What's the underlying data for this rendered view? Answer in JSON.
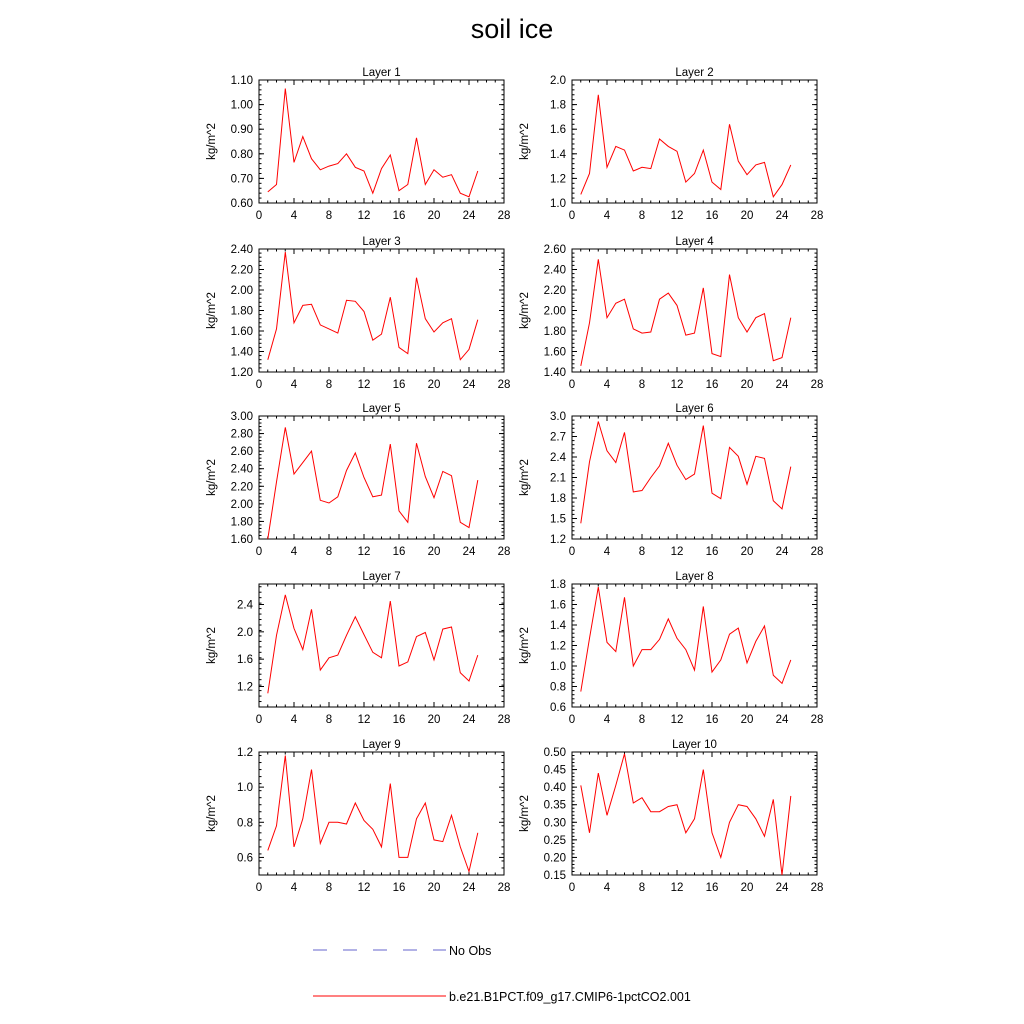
{
  "title": "soil ice",
  "chart_data": [
    {
      "type": "line",
      "title": "Layer 1",
      "ylabel": "kg/m^2",
      "xlim": [
        0,
        28
      ],
      "xticks": [
        0,
        4,
        8,
        12,
        16,
        20,
        24,
        28
      ],
      "ylim": [
        0.6,
        1.1
      ],
      "yticks": [
        0.6,
        0.7,
        0.8,
        0.9,
        1.0,
        1.1
      ],
      "ytick_labels": [
        "0.60",
        "0.70",
        "0.80",
        "0.90",
        "1.00",
        "1.10"
      ],
      "series": [
        {
          "name": "b.e21.B1PCT.f09_g17.CMIP6-1pctCO2.001",
          "color": "#ff0000",
          "x": [
            1,
            2,
            3,
            4,
            5,
            6,
            7,
            8,
            9,
            10,
            11,
            12,
            13,
            14,
            15,
            16,
            17,
            18,
            19,
            20,
            21,
            22,
            23,
            24,
            25
          ],
          "y": [
            0.645,
            0.675,
            1.065,
            0.765,
            0.87,
            0.78,
            0.735,
            0.75,
            0.76,
            0.8,
            0.745,
            0.73,
            0.64,
            0.74,
            0.795,
            0.65,
            0.675,
            0.865,
            0.675,
            0.735,
            0.705,
            0.715,
            0.64,
            0.625,
            0.73
          ]
        }
      ]
    },
    {
      "type": "line",
      "title": "Layer 2",
      "ylabel": "kg/m^2",
      "xlim": [
        0,
        28
      ],
      "xticks": [
        0,
        4,
        8,
        12,
        16,
        20,
        24,
        28
      ],
      "ylim": [
        1.0,
        2.0
      ],
      "yticks": [
        1.0,
        1.2,
        1.4,
        1.6,
        1.8,
        2.0
      ],
      "ytick_labels": [
        "1.0",
        "1.2",
        "1.4",
        "1.6",
        "1.8",
        "2.0"
      ],
      "series": [
        {
          "name": "b.e21.B1PCT.f09_g17.CMIP6-1pctCO2.001",
          "color": "#ff0000",
          "x": [
            1,
            2,
            3,
            4,
            5,
            6,
            7,
            8,
            9,
            10,
            11,
            12,
            13,
            14,
            15,
            16,
            17,
            18,
            19,
            20,
            21,
            22,
            23,
            24,
            25
          ],
          "y": [
            1.07,
            1.24,
            1.88,
            1.29,
            1.46,
            1.43,
            1.26,
            1.29,
            1.28,
            1.52,
            1.46,
            1.42,
            1.17,
            1.24,
            1.43,
            1.17,
            1.11,
            1.64,
            1.34,
            1.23,
            1.31,
            1.33,
            1.05,
            1.15,
            1.31
          ]
        }
      ]
    },
    {
      "type": "line",
      "title": "Layer 3",
      "ylabel": "kg/m^2",
      "xlim": [
        0,
        28
      ],
      "xticks": [
        0,
        4,
        8,
        12,
        16,
        20,
        24,
        28
      ],
      "ylim": [
        1.2,
        2.4
      ],
      "yticks": [
        1.2,
        1.4,
        1.6,
        1.8,
        2.0,
        2.2,
        2.4
      ],
      "ytick_labels": [
        "1.20",
        "1.40",
        "1.60",
        "1.80",
        "2.00",
        "2.20",
        "2.40"
      ],
      "series": [
        {
          "name": "b.e21.B1PCT.f09_g17.CMIP6-1pctCO2.001",
          "color": "#ff0000",
          "x": [
            1,
            2,
            3,
            4,
            5,
            6,
            7,
            8,
            9,
            10,
            11,
            12,
            13,
            14,
            15,
            16,
            17,
            18,
            19,
            20,
            21,
            22,
            23,
            24,
            25
          ],
          "y": [
            1.32,
            1.62,
            2.37,
            1.68,
            1.85,
            1.86,
            1.66,
            1.62,
            1.58,
            1.9,
            1.89,
            1.79,
            1.51,
            1.57,
            1.93,
            1.44,
            1.38,
            2.12,
            1.72,
            1.59,
            1.68,
            1.72,
            1.32,
            1.42,
            1.71
          ]
        }
      ]
    },
    {
      "type": "line",
      "title": "Layer 4",
      "ylabel": "kg/m^2",
      "xlim": [
        0,
        28
      ],
      "xticks": [
        0,
        4,
        8,
        12,
        16,
        20,
        24,
        28
      ],
      "ylim": [
        1.4,
        2.6
      ],
      "yticks": [
        1.4,
        1.6,
        1.8,
        2.0,
        2.2,
        2.4,
        2.6
      ],
      "ytick_labels": [
        "1.40",
        "1.60",
        "1.80",
        "2.00",
        "2.20",
        "2.40",
        "2.60"
      ],
      "series": [
        {
          "name": "b.e21.B1PCT.f09_g17.CMIP6-1pctCO2.001",
          "color": "#ff0000",
          "x": [
            1,
            2,
            3,
            4,
            5,
            6,
            7,
            8,
            9,
            10,
            11,
            12,
            13,
            14,
            15,
            16,
            17,
            18,
            19,
            20,
            21,
            22,
            23,
            24,
            25
          ],
          "y": [
            1.46,
            1.88,
            2.5,
            1.93,
            2.07,
            2.11,
            1.82,
            1.78,
            1.79,
            2.11,
            2.17,
            2.05,
            1.76,
            1.78,
            2.22,
            1.58,
            1.55,
            2.35,
            1.93,
            1.79,
            1.93,
            1.97,
            1.51,
            1.54,
            1.93
          ]
        }
      ]
    },
    {
      "type": "line",
      "title": "Layer 5",
      "ylabel": "kg/m^2",
      "xlim": [
        0,
        28
      ],
      "xticks": [
        0,
        4,
        8,
        12,
        16,
        20,
        24,
        28
      ],
      "ylim": [
        1.6,
        3.0
      ],
      "yticks": [
        1.6,
        1.8,
        2.0,
        2.2,
        2.4,
        2.6,
        2.8,
        3.0
      ],
      "ytick_labels": [
        "1.60",
        "1.80",
        "2.00",
        "2.20",
        "2.40",
        "2.60",
        "2.80",
        "3.00"
      ],
      "series": [
        {
          "name": "b.e21.B1PCT.f09_g17.CMIP6-1pctCO2.001",
          "color": "#ff0000",
          "x": [
            1,
            2,
            3,
            4,
            5,
            6,
            7,
            8,
            9,
            10,
            11,
            12,
            13,
            14,
            15,
            16,
            17,
            18,
            19,
            20,
            21,
            22,
            23,
            24,
            25
          ],
          "y": [
            1.6,
            2.25,
            2.87,
            2.34,
            2.47,
            2.6,
            2.04,
            2.01,
            2.08,
            2.38,
            2.58,
            2.3,
            2.08,
            2.1,
            2.68,
            1.92,
            1.79,
            2.69,
            2.31,
            2.07,
            2.37,
            2.32,
            1.79,
            1.73,
            2.27
          ]
        }
      ]
    },
    {
      "type": "line",
      "title": "Layer 6",
      "ylabel": "kg/m^2",
      "xlim": [
        0,
        28
      ],
      "xticks": [
        0,
        4,
        8,
        12,
        16,
        20,
        24,
        28
      ],
      "ylim": [
        1.2,
        3.0
      ],
      "yticks": [
        1.2,
        1.5,
        1.8,
        2.1,
        2.4,
        2.7,
        3.0
      ],
      "ytick_labels": [
        "1.2",
        "1.5",
        "1.8",
        "2.1",
        "2.4",
        "2.7",
        "3.0"
      ],
      "series": [
        {
          "name": "b.e21.B1PCT.f09_g17.CMIP6-1pctCO2.001",
          "color": "#ff0000",
          "x": [
            1,
            2,
            3,
            4,
            5,
            6,
            7,
            8,
            9,
            10,
            11,
            12,
            13,
            14,
            15,
            16,
            17,
            18,
            19,
            20,
            21,
            22,
            23,
            24,
            25
          ],
          "y": [
            1.43,
            2.33,
            2.92,
            2.49,
            2.32,
            2.76,
            1.89,
            1.91,
            2.1,
            2.27,
            2.6,
            2.28,
            2.07,
            2.15,
            2.86,
            1.87,
            1.79,
            2.54,
            2.41,
            2.0,
            2.41,
            2.38,
            1.76,
            1.64,
            2.26
          ]
        }
      ]
    },
    {
      "type": "line",
      "title": "Layer 7",
      "ylabel": "kg/m^2",
      "xlim": [
        0,
        28
      ],
      "xticks": [
        0,
        4,
        8,
        12,
        16,
        20,
        24,
        28
      ],
      "ylim": [
        0.9,
        2.7
      ],
      "yticks": [
        1.2,
        1.6,
        2.0,
        2.4
      ],
      "ytick_labels": [
        "1.2",
        "1.6",
        "2.0",
        "2.4"
      ],
      "series": [
        {
          "name": "b.e21.B1PCT.f09_g17.CMIP6-1pctCO2.001",
          "color": "#ff0000",
          "x": [
            1,
            2,
            3,
            4,
            5,
            6,
            7,
            8,
            9,
            10,
            11,
            12,
            13,
            14,
            15,
            16,
            17,
            18,
            19,
            20,
            21,
            22,
            23,
            24,
            25
          ],
          "y": [
            1.1,
            1.95,
            2.54,
            2.05,
            1.74,
            2.33,
            1.44,
            1.62,
            1.66,
            1.95,
            2.22,
            1.96,
            1.7,
            1.62,
            2.45,
            1.5,
            1.56,
            1.93,
            1.99,
            1.59,
            2.04,
            2.07,
            1.4,
            1.28,
            1.66
          ]
        }
      ]
    },
    {
      "type": "line",
      "title": "Layer 8",
      "ylabel": "kg/m^2",
      "xlim": [
        0,
        28
      ],
      "xticks": [
        0,
        4,
        8,
        12,
        16,
        20,
        24,
        28
      ],
      "ylim": [
        0.6,
        1.8
      ],
      "yticks": [
        0.6,
        0.8,
        1.0,
        1.2,
        1.4,
        1.6,
        1.8
      ],
      "ytick_labels": [
        "0.6",
        "0.8",
        "1.0",
        "1.2",
        "1.4",
        "1.6",
        "1.8"
      ],
      "series": [
        {
          "name": "b.e21.B1PCT.f09_g17.CMIP6-1pctCO2.001",
          "color": "#ff0000",
          "x": [
            1,
            2,
            3,
            4,
            5,
            6,
            7,
            8,
            9,
            10,
            11,
            12,
            13,
            14,
            15,
            16,
            17,
            18,
            19,
            20,
            21,
            22,
            23,
            24,
            25
          ],
          "y": [
            0.75,
            1.27,
            1.77,
            1.23,
            1.14,
            1.67,
            1.0,
            1.16,
            1.16,
            1.26,
            1.46,
            1.27,
            1.16,
            0.96,
            1.58,
            0.94,
            1.06,
            1.31,
            1.37,
            1.03,
            1.24,
            1.39,
            0.91,
            0.83,
            1.06
          ]
        }
      ]
    },
    {
      "type": "line",
      "title": "Layer 9",
      "ylabel": "kg/m^2",
      "xlim": [
        0,
        28
      ],
      "xticks": [
        0,
        4,
        8,
        12,
        16,
        20,
        24,
        28
      ],
      "ylim": [
        0.5,
        1.2
      ],
      "yticks": [
        0.6,
        0.8,
        1.0,
        1.2
      ],
      "ytick_labels": [
        "0.6",
        "0.8",
        "1.0",
        "1.2"
      ],
      "series": [
        {
          "name": "b.e21.B1PCT.f09_g17.CMIP6-1pctCO2.001",
          "color": "#ff0000",
          "x": [
            1,
            2,
            3,
            4,
            5,
            6,
            7,
            8,
            9,
            10,
            11,
            12,
            13,
            14,
            15,
            16,
            17,
            18,
            19,
            20,
            21,
            22,
            23,
            24,
            25
          ],
          "y": [
            0.64,
            0.78,
            1.18,
            0.66,
            0.82,
            1.1,
            0.68,
            0.8,
            0.8,
            0.79,
            0.91,
            0.81,
            0.76,
            0.66,
            1.02,
            0.6,
            0.6,
            0.82,
            0.91,
            0.7,
            0.69,
            0.84,
            0.66,
            0.52,
            0.74
          ]
        }
      ]
    },
    {
      "type": "line",
      "title": "Layer 10",
      "ylabel": "kg/m^2",
      "xlim": [
        0,
        28
      ],
      "xticks": [
        0,
        4,
        8,
        12,
        16,
        20,
        24,
        28
      ],
      "ylim": [
        0.15,
        0.5
      ],
      "yticks": [
        0.15,
        0.2,
        0.25,
        0.3,
        0.35,
        0.4,
        0.45,
        0.5
      ],
      "ytick_labels": [
        "0.15",
        "0.20",
        "0.25",
        "0.30",
        "0.35",
        "0.40",
        "0.45",
        "0.50"
      ],
      "series": [
        {
          "name": "b.e21.B1PCT.f09_g17.CMIP6-1pctCO2.001",
          "color": "#ff0000",
          "x": [
            1,
            2,
            3,
            4,
            5,
            6,
            7,
            8,
            9,
            10,
            11,
            12,
            13,
            14,
            15,
            16,
            17,
            18,
            19,
            20,
            21,
            22,
            23,
            24,
            25
          ],
          "y": [
            0.405,
            0.27,
            0.44,
            0.32,
            0.405,
            0.495,
            0.355,
            0.37,
            0.33,
            0.33,
            0.345,
            0.35,
            0.27,
            0.31,
            0.45,
            0.27,
            0.2,
            0.3,
            0.35,
            0.345,
            0.31,
            0.26,
            0.365,
            0.15,
            0.375
          ]
        }
      ]
    }
  ],
  "legend": [
    {
      "label": "No Obs",
      "color": "#6666cc",
      "style": "dashed"
    },
    {
      "label": "b.e21.B1PCT.f09_g17.CMIP6-1pctCO2.001",
      "color": "#ff0000",
      "style": "solid"
    }
  ]
}
